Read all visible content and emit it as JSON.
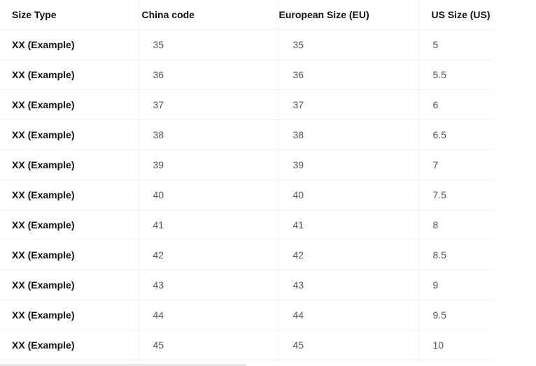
{
  "table": {
    "header": [
      "Size Type",
      "China code",
      "European Size (EU)",
      "US Size (US)"
    ],
    "rows": [
      [
        "XX (Example)",
        "35",
        "35",
        "5"
      ],
      [
        "XX (Example)",
        "36",
        "36",
        "5.5"
      ],
      [
        "XX (Example)",
        "37",
        "37",
        "6"
      ],
      [
        "XX (Example)",
        "38",
        "38",
        "6.5"
      ],
      [
        "XX (Example)",
        "39",
        "39",
        "7"
      ],
      [
        "XX (Example)",
        "40",
        "40",
        "7.5"
      ],
      [
        "XX (Example)",
        "41",
        "41",
        "8"
      ],
      [
        "XX (Example)",
        "42",
        "42",
        "8.5"
      ],
      [
        "XX (Example)",
        "43",
        "43",
        "9"
      ],
      [
        "XX (Example)",
        "44",
        "44",
        "9.5"
      ],
      [
        "XX (Example)",
        "45",
        "45",
        "10"
      ]
    ]
  }
}
